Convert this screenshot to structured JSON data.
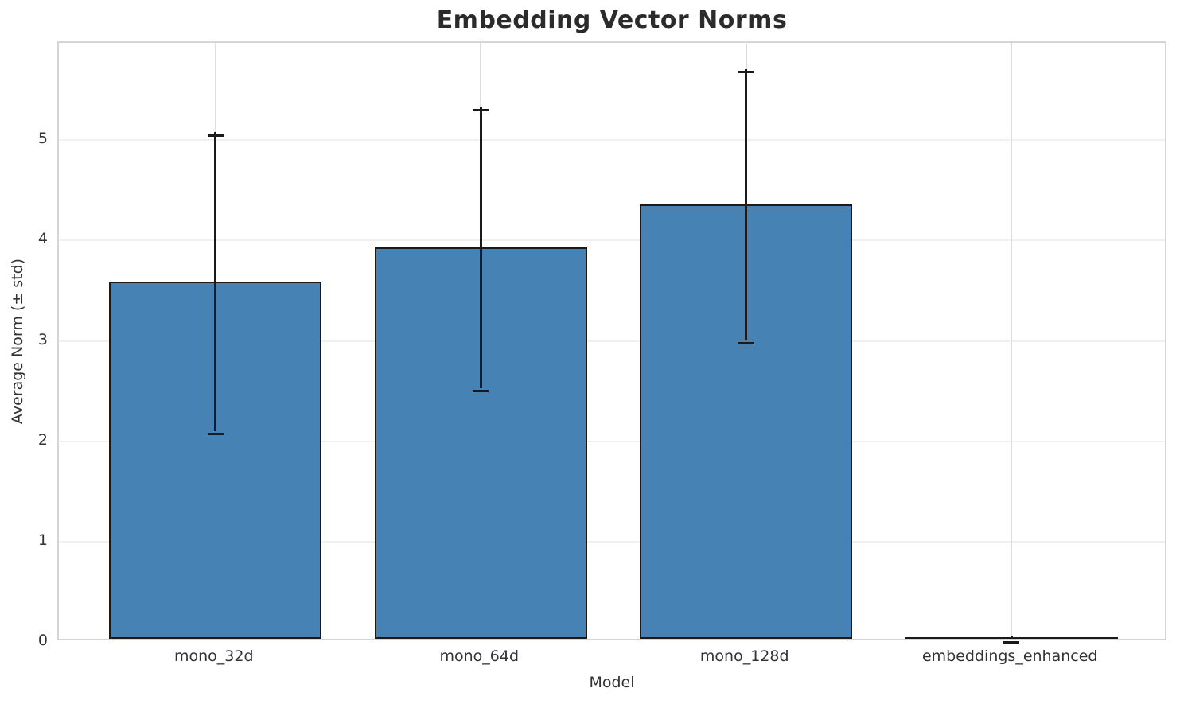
{
  "chart_data": {
    "type": "bar",
    "title": "Embedding Vector Norms",
    "xlabel": "Model",
    "ylabel": "Average Norm (± std)",
    "categories": [
      "mono_32d",
      "mono_64d",
      "mono_128d",
      "embeddings_enhanced"
    ],
    "series": [
      {
        "name": "average_norm",
        "values": [
          3.56,
          3.9,
          4.33,
          0.0
        ],
        "errors": [
          1.49,
          1.4,
          1.35,
          0.0
        ]
      }
    ],
    "yticks": [
      0,
      1,
      2,
      3,
      4,
      5
    ],
    "ylim": [
      0,
      5.97
    ],
    "xlim": [
      -0.59,
      3.59
    ],
    "bar_width": 0.8,
    "grid": "both",
    "legend": "none",
    "colors": {
      "bar_fill": "#4682b4",
      "bar_edge": "#1a1a1a",
      "error_bar": "#1a1a1a",
      "grid_horizontal": "#f0f0f0",
      "grid_vertical": "#dcdcdc",
      "spine": "#d5d5d5",
      "tick_text": "#333333",
      "title_text": "#2b2b2b",
      "background": "#ffffff"
    }
  }
}
